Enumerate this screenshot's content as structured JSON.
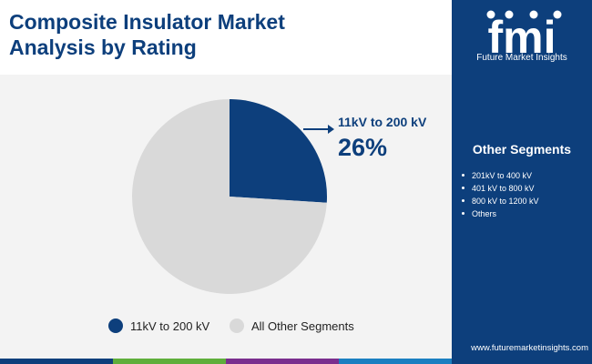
{
  "title_line1": "Composite Insulator Market",
  "title_line2": "Analysis by Rating",
  "brand": {
    "logo_text": "fmi",
    "tagline": "Future Market Insights",
    "url": "www.futuremarketinsights.com"
  },
  "colors": {
    "primary": "#0d3f7c",
    "other": "#d9d9d9",
    "background": "#f3f3f3",
    "bar": [
      "#0d3f7c",
      "#5fae3b",
      "#7a2e8e",
      "#1a7fc1"
    ]
  },
  "callout": {
    "label": "11kV to 200 kV",
    "value": "26%"
  },
  "other_segments": {
    "title": "Other Segments",
    "items": [
      "201kV to 400 kV",
      "401 kV to 800 kV",
      "800 kV to 1200 kV",
      "Others"
    ]
  },
  "chart_data": {
    "type": "pie",
    "title": "Composite Insulator Market Analysis by Rating",
    "series": [
      {
        "name": "11kV to 200 kV",
        "value": 26,
        "color": "#0d3f7c"
      },
      {
        "name": "All Other Segments",
        "value": 74,
        "color": "#d9d9d9"
      }
    ],
    "legend": {
      "position": "bottom",
      "entries": [
        "11kV to 200 kV",
        "All Other Segments"
      ]
    }
  }
}
